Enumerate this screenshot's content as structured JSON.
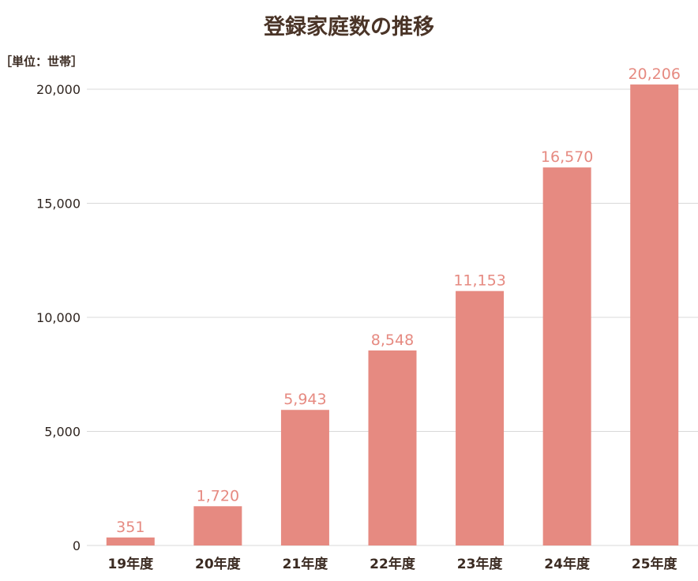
{
  "chart_data": {
    "type": "bar",
    "title": "登録家庭数の推移",
    "unit_label": "［単位：世帯］",
    "categories": [
      "19年度",
      "20年度",
      "21年度",
      "22年度",
      "23年度",
      "24年度",
      "25年度"
    ],
    "values": [
      351,
      1720,
      5943,
      8548,
      11153,
      16570,
      20206
    ],
    "value_labels": [
      "351",
      "1,720",
      "5,943",
      "8,548",
      "11,153",
      "16,570",
      "20,206"
    ],
    "yticks": [
      "0",
      "5,000",
      "10,000",
      "15,000",
      "20,000"
    ],
    "ytick_values": [
      0,
      5000,
      10000,
      15000,
      20000
    ],
    "ylim": [
      0,
      20000
    ],
    "grid": true,
    "colors": {
      "bar": "#e68a81",
      "data_label": "#e68a81",
      "grid": "#d9d9d9",
      "title": "#4a3427"
    }
  }
}
